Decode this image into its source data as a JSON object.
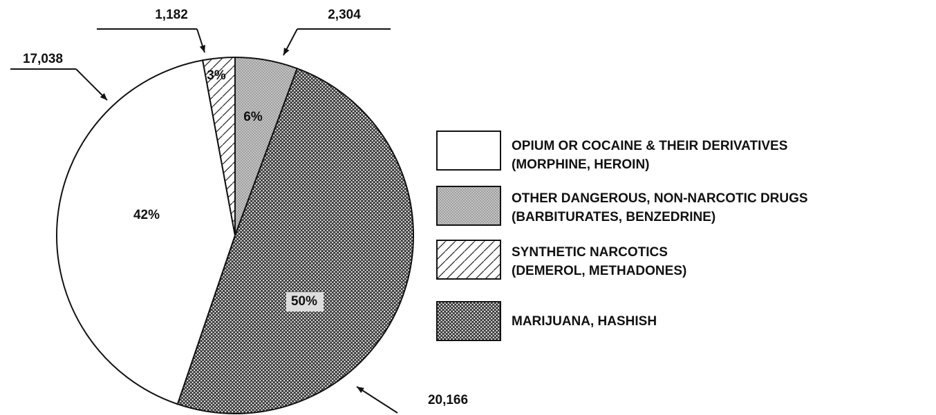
{
  "chart_data": {
    "type": "pie",
    "categories": [
      "OPIUM OR COCAINE & THEIR DERIVATIVES\n(MORPHINE, HEROIN)",
      "OTHER DANGEROUS, NON-NARCOTIC DRUGS\n(BARBITURATES, BENZEDRINE)",
      "SYNTHETIC NARCOTICS\n(DEMEROL, METHADONES)",
      "MARIJUANA, HASHISH"
    ],
    "values": [
      17038,
      2304,
      1182,
      20166
    ],
    "value_labels": [
      "17,038",
      "2,304",
      "1,182",
      "20,166"
    ],
    "percent_labels": [
      "42%",
      "6%",
      "3%",
      "50%"
    ],
    "colors": [
      "#ffffff",
      "#c4c4c4",
      "#ffffff",
      "#3a3a3a"
    ],
    "slice_order": [
      1,
      3,
      0,
      2
    ]
  }
}
